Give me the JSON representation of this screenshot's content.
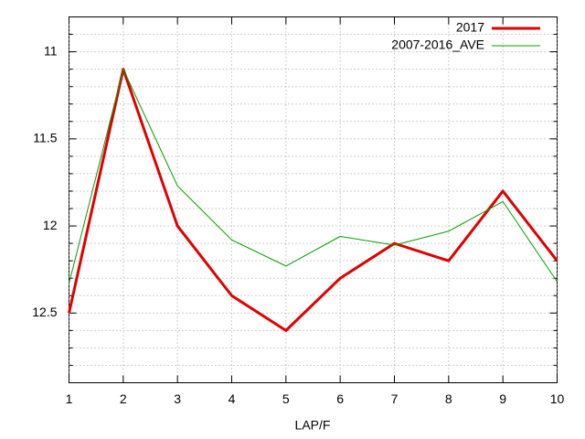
{
  "chart_data": {
    "type": "line",
    "x_label": "LAP/F",
    "x": [
      1,
      2,
      3,
      4,
      5,
      6,
      7,
      8,
      9,
      10
    ],
    "series": [
      {
        "name": "2017",
        "color": "#e00000",
        "width": 3,
        "values": [
          12.5,
          11.1,
          12.0,
          12.4,
          12.6,
          12.3,
          12.1,
          12.2,
          11.8,
          12.2
        ]
      },
      {
        "name": "2007-2016_AVE",
        "color": "#00a000",
        "width": 1,
        "values": [
          12.33,
          11.1,
          11.77,
          12.08,
          12.23,
          12.06,
          12.11,
          12.03,
          11.86,
          12.32
        ]
      }
    ],
    "xlim": [
      1,
      10
    ],
    "xticks": [
      1,
      2,
      3,
      4,
      5,
      6,
      7,
      8,
      9,
      10
    ],
    "ylim": [
      10.8,
      12.9
    ],
    "y_reversed": true,
    "yticks": [
      11,
      11.5,
      12,
      12.5
    ],
    "yminorticks": [
      10.9,
      11.1,
      11.2,
      11.3,
      11.4,
      11.6,
      11.7,
      11.8,
      11.9,
      12.1,
      12.2,
      12.3,
      12.4,
      12.6,
      12.7,
      12.8
    ],
    "grid": true,
    "legend": "top-right"
  }
}
